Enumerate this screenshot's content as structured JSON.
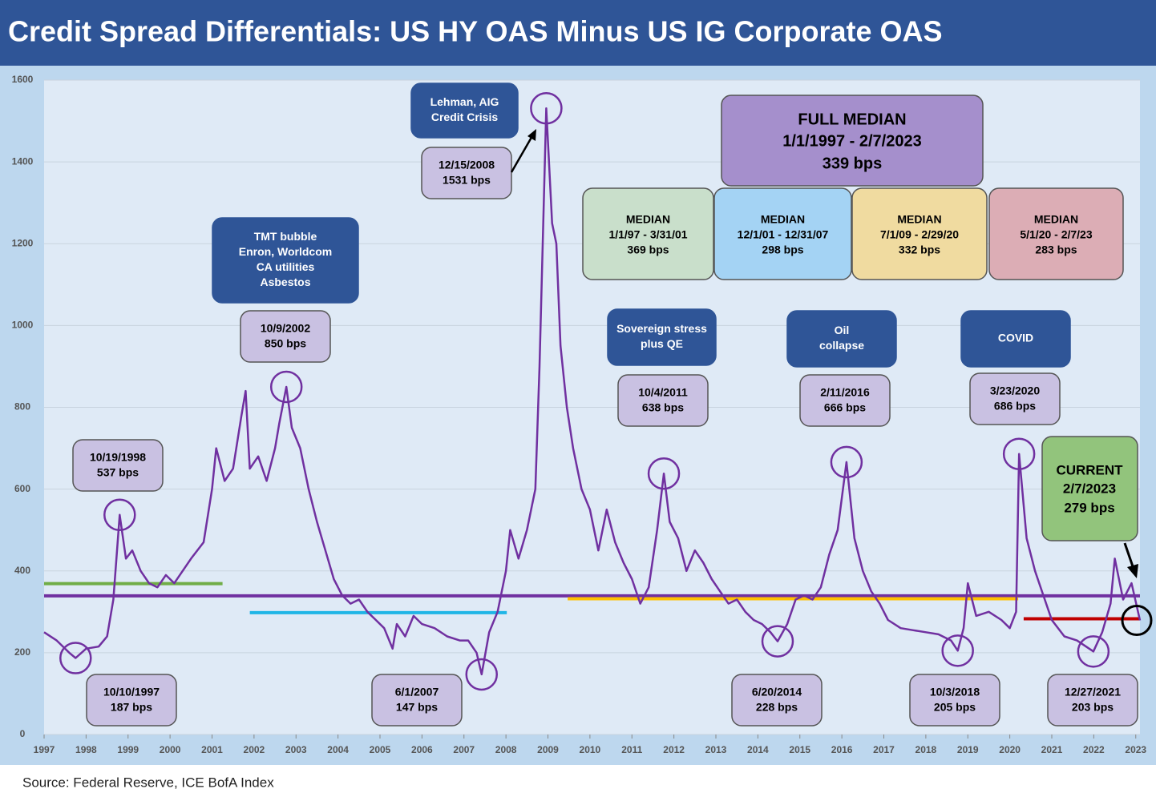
{
  "chart_data": {
    "type": "line",
    "title": "Credit Spread Differentials: US HY OAS Minus US IG Corporate OAS",
    "source": "Source: Federal Reserve, ICE BofA Index",
    "color": "#7030a0",
    "xlim": [
      1997,
      2023.1
    ],
    "ylim": [
      0,
      1600
    ],
    "xticks": [
      1997,
      1998,
      1999,
      2000,
      2001,
      2002,
      2003,
      2004,
      2005,
      2006,
      2007,
      2008,
      2009,
      2010,
      2011,
      2012,
      2013,
      2014,
      2015,
      2016,
      2017,
      2018,
      2019,
      2020,
      2021,
      2022,
      2023
    ],
    "yticks": [
      0,
      200,
      400,
      600,
      800,
      1000,
      1200,
      1400,
      1600
    ],
    "grid": true,
    "x": [
      1997.0,
      1997.3,
      1997.6,
      1997.75,
      1998.0,
      1998.3,
      1998.5,
      1998.65,
      1998.8,
      1998.95,
      1999.1,
      1999.3,
      1999.5,
      1999.7,
      1999.9,
      2000.1,
      2000.3,
      2000.5,
      2000.8,
      2001.0,
      2001.1,
      2001.3,
      2001.5,
      2001.7,
      2001.8,
      2001.9,
      2002.1,
      2002.3,
      2002.5,
      2002.6,
      2002.77,
      2002.9,
      2003.1,
      2003.3,
      2003.5,
      2003.7,
      2003.9,
      2004.1,
      2004.3,
      2004.5,
      2004.7,
      2004.9,
      2005.1,
      2005.3,
      2005.4,
      2005.6,
      2005.8,
      2006.0,
      2006.3,
      2006.6,
      2006.9,
      2007.1,
      2007.3,
      2007.42,
      2007.6,
      2007.8,
      2008.0,
      2008.1,
      2008.3,
      2008.5,
      2008.7,
      2008.8,
      2008.96,
      2009.1,
      2009.2,
      2009.3,
      2009.45,
      2009.6,
      2009.8,
      2010.0,
      2010.2,
      2010.4,
      2010.6,
      2010.8,
      2011.0,
      2011.2,
      2011.4,
      2011.6,
      2011.76,
      2011.9,
      2012.1,
      2012.3,
      2012.5,
      2012.7,
      2012.9,
      2013.1,
      2013.3,
      2013.5,
      2013.7,
      2013.9,
      2014.1,
      2014.3,
      2014.47,
      2014.7,
      2014.9,
      2015.1,
      2015.3,
      2015.5,
      2015.7,
      2015.9,
      2016.11,
      2016.3,
      2016.5,
      2016.7,
      2016.9,
      2017.1,
      2017.4,
      2017.7,
      2018.0,
      2018.3,
      2018.6,
      2018.76,
      2018.9,
      2019.0,
      2019.2,
      2019.5,
      2019.8,
      2020.0,
      2020.15,
      2020.22,
      2020.4,
      2020.6,
      2020.8,
      2021.0,
      2021.3,
      2021.6,
      2021.99,
      2022.2,
      2022.4,
      2022.5,
      2022.7,
      2022.9,
      2023.1
    ],
    "values": [
      250,
      230,
      200,
      187,
      210,
      215,
      240,
      330,
      537,
      430,
      450,
      400,
      370,
      360,
      390,
      370,
      400,
      430,
      470,
      600,
      700,
      620,
      650,
      780,
      840,
      650,
      680,
      620,
      700,
      760,
      850,
      750,
      700,
      600,
      520,
      450,
      380,
      340,
      320,
      330,
      300,
      280,
      260,
      210,
      270,
      240,
      290,
      270,
      260,
      240,
      230,
      230,
      200,
      147,
      250,
      300,
      400,
      500,
      430,
      500,
      600,
      900,
      1531,
      1250,
      1200,
      950,
      800,
      700,
      600,
      550,
      450,
      550,
      470,
      420,
      380,
      320,
      360,
      500,
      638,
      520,
      480,
      400,
      450,
      420,
      380,
      350,
      320,
      330,
      300,
      280,
      270,
      250,
      228,
      270,
      330,
      340,
      330,
      360,
      440,
      500,
      666,
      480,
      400,
      350,
      320,
      280,
      260,
      255,
      250,
      245,
      230,
      205,
      260,
      370,
      290,
      300,
      280,
      260,
      300,
      686,
      480,
      400,
      340,
      280,
      240,
      230,
      203,
      250,
      320,
      430,
      330,
      370,
      279
    ],
    "full_median": {
      "title": "FULL MEDIAN",
      "period": "1/1/1997 - 2/7/2023",
      "value": 339,
      "label": "339 bps",
      "color": "#a58fcc",
      "line_color": "#7030a0"
    },
    "medians": [
      {
        "title": "MEDIAN",
        "period": "1/1/97 - 3/31/01",
        "value": 369,
        "label": "369 bps",
        "x": [
          1997,
          2001.25
        ],
        "color": "#c9dfcb",
        "line_color": "#70ad47"
      },
      {
        "title": "MEDIAN",
        "period": "12/1/01 - 12/31/07",
        "value": 298,
        "label": "298 bps",
        "x": [
          2001.9,
          2008.02
        ],
        "color": "#a4d3f4",
        "line_color": "#1fb5e6"
      },
      {
        "title": "MEDIAN",
        "period": "7/1/09 - 2/29/20",
        "value": 332,
        "label": "332 bps",
        "x": [
          2009.47,
          2020.2
        ],
        "color": "#f0dba0",
        "line_color": "#ffc000"
      },
      {
        "title": "MEDIAN",
        "period": "5/1/20 - 2/7/23",
        "value": 283,
        "label": "283 bps",
        "x": [
          2020.33,
          2023.1
        ],
        "color": "#dcadb5",
        "line_color": "#c00000"
      }
    ],
    "annotations": [
      {
        "date": "10/10/1997",
        "x": 1997.75,
        "value": 187,
        "label": "187 bps"
      },
      {
        "date": "10/19/1998",
        "x": 1998.8,
        "value": 537,
        "label": "537 bps"
      },
      {
        "date": "10/9/2002",
        "x": 2002.77,
        "value": 850,
        "label": "850 bps"
      },
      {
        "date": "6/1/2007",
        "x": 2007.42,
        "value": 147,
        "label": "147 bps"
      },
      {
        "date": "12/15/2008",
        "x": 2008.96,
        "value": 1531,
        "label": "1531 bps"
      },
      {
        "date": "10/4/2011",
        "x": 2011.76,
        "value": 638,
        "label": "638 bps"
      },
      {
        "date": "6/20/2014",
        "x": 2014.47,
        "value": 228,
        "label": "228 bps"
      },
      {
        "date": "2/11/2016",
        "x": 2016.11,
        "value": 666,
        "label": "666 bps"
      },
      {
        "date": "10/3/2018",
        "x": 2018.76,
        "value": 205,
        "label": "205 bps"
      },
      {
        "date": "3/23/2020",
        "x": 2020.22,
        "value": 686,
        "label": "686 bps"
      },
      {
        "date": "12/27/2021",
        "x": 2021.99,
        "value": 203,
        "label": "203 bps"
      }
    ],
    "current": {
      "title": "CURRENT",
      "date": "2/7/2023",
      "x": 2023.1,
      "value": 279,
      "label": "279 bps"
    },
    "events": [
      {
        "lines": [
          "TMT bubble",
          "Enron, Worldcom",
          "CA utilities",
          "Asbestos"
        ]
      },
      {
        "lines": [
          "Lehman, AIG",
          "Credit Crisis"
        ]
      },
      {
        "lines": [
          "Sovereign stress",
          "plus QE"
        ]
      },
      {
        "lines": [
          "Oil",
          "collapse"
        ]
      },
      {
        "lines": [
          "COVID"
        ]
      }
    ]
  }
}
